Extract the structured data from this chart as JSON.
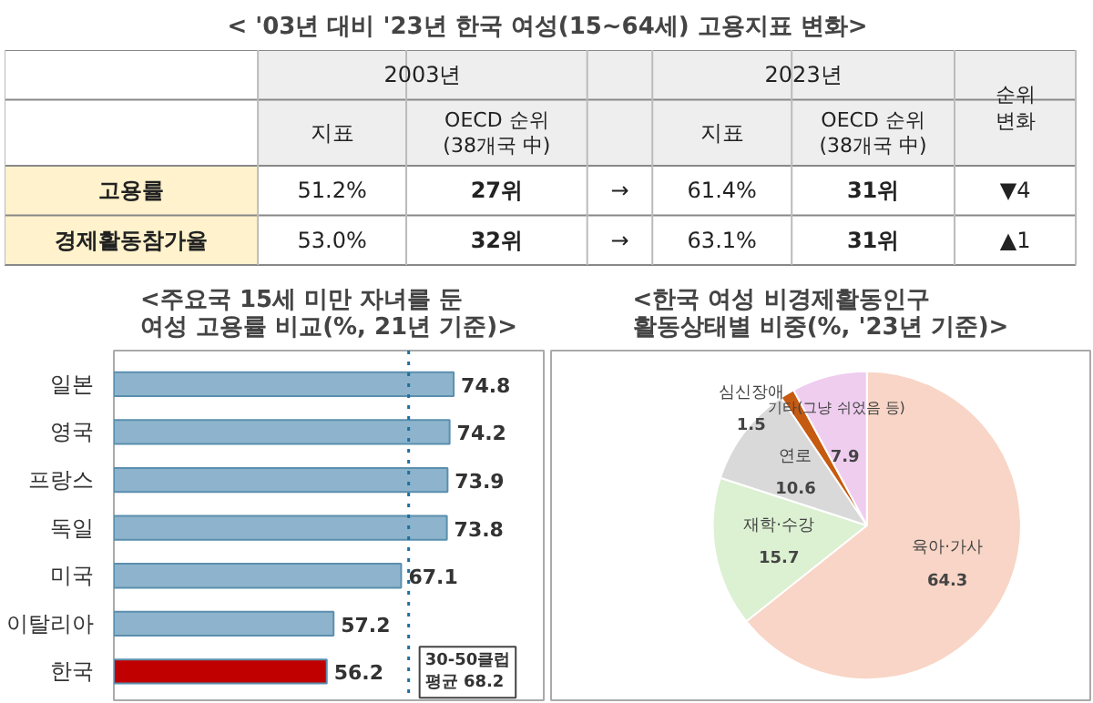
{
  "chart_data": [
    {
      "type": "other",
      "title": "< '03년 대비 '23년 한국 여성(15~64세) 고용지표 변화>",
      "annotations": [
        "2003년",
        "2023년",
        "순위\n변화",
        "지표",
        "OECD 순위\n(38개국 中)",
        "지표",
        "OECD 순위\n(38개국 中)",
        "고용률",
        "51.2%",
        "27위",
        "→",
        "61.4%",
        "31위",
        "▼4",
        "경제활동참가율",
        "53.0%",
        "32위",
        "→",
        "63.1%",
        "31위",
        "▲1"
      ]
    },
    {
      "type": "bar",
      "title": "<주요국 15세 미만 자녀를 둔\n여성 고용률 비교(%, 21년 기준)>",
      "orientation": "horizontal",
      "categories": [
        "일본",
        "영국",
        "프랑스",
        "독일",
        "미국",
        "이탈리아",
        "한국"
      ],
      "values": [
        74.8,
        74.2,
        73.9,
        73.8,
        67.1,
        57.2,
        56.2
      ],
      "colors": [
        "#8db4cc",
        "#8db4cc",
        "#8db4cc",
        "#8db4cc",
        "#8db4cc",
        "#8db4cc",
        "#c00000"
      ],
      "xlim": [
        25,
        88
      ],
      "tick_labels": "y",
      "data_labels": true,
      "grid": false,
      "legend": false,
      "ref_lines": [
        {
          "axis": "x",
          "value": 68.2,
          "label": "30-50클럽\n평균 68.2",
          "color": "#1f6f9f",
          "line_style": "dotted"
        }
      ]
    },
    {
      "type": "pie",
      "title": "<한국 여성 비경제활동인구\n활동상태별 비중(%, '23년 기준)>",
      "categories": [
        "육아·가사",
        "재학·수강",
        "연로",
        "심신장애",
        "기타(그냥 쉬었음 등)"
      ],
      "values": [
        64.3,
        15.7,
        10.6,
        1.5,
        7.9
      ],
      "colors": [
        "#f8d5c6",
        "#dcf0d2",
        "#d9d9d9",
        "#c55a11",
        "#efcdef"
      ],
      "data_labels": true,
      "legend": false
    }
  ]
}
